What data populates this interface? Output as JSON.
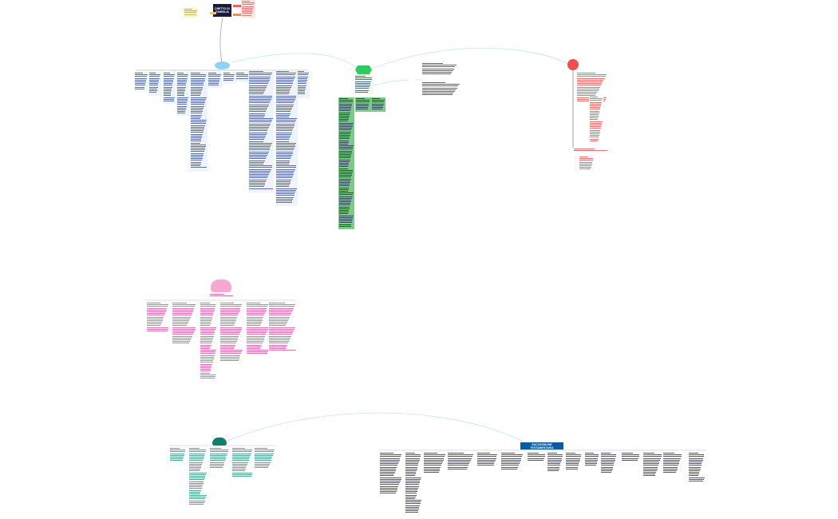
{
  "root": {
    "title": "DIRITTO DI FAMIGLIA",
    "color": "#1a1a3a"
  },
  "bottom_right": {
    "title": "SUCCESSIONE TESTAMENTARIA",
    "color": "#0d5a9e"
  },
  "colors": {
    "blue_topic": "#8fd3f4",
    "green_topic": "#2ecc5f",
    "red_topic": "#f05050",
    "pink_topic": "#f7a8d0",
    "teal_topic": "#137c6a",
    "connector": "#bfe7ef",
    "green_panel": "#7dc98a",
    "blue_text": "#2b3f8f",
    "red_text": "#e04040",
    "pink_text": "#d0409a",
    "teal_text": "#1a8a70"
  }
}
